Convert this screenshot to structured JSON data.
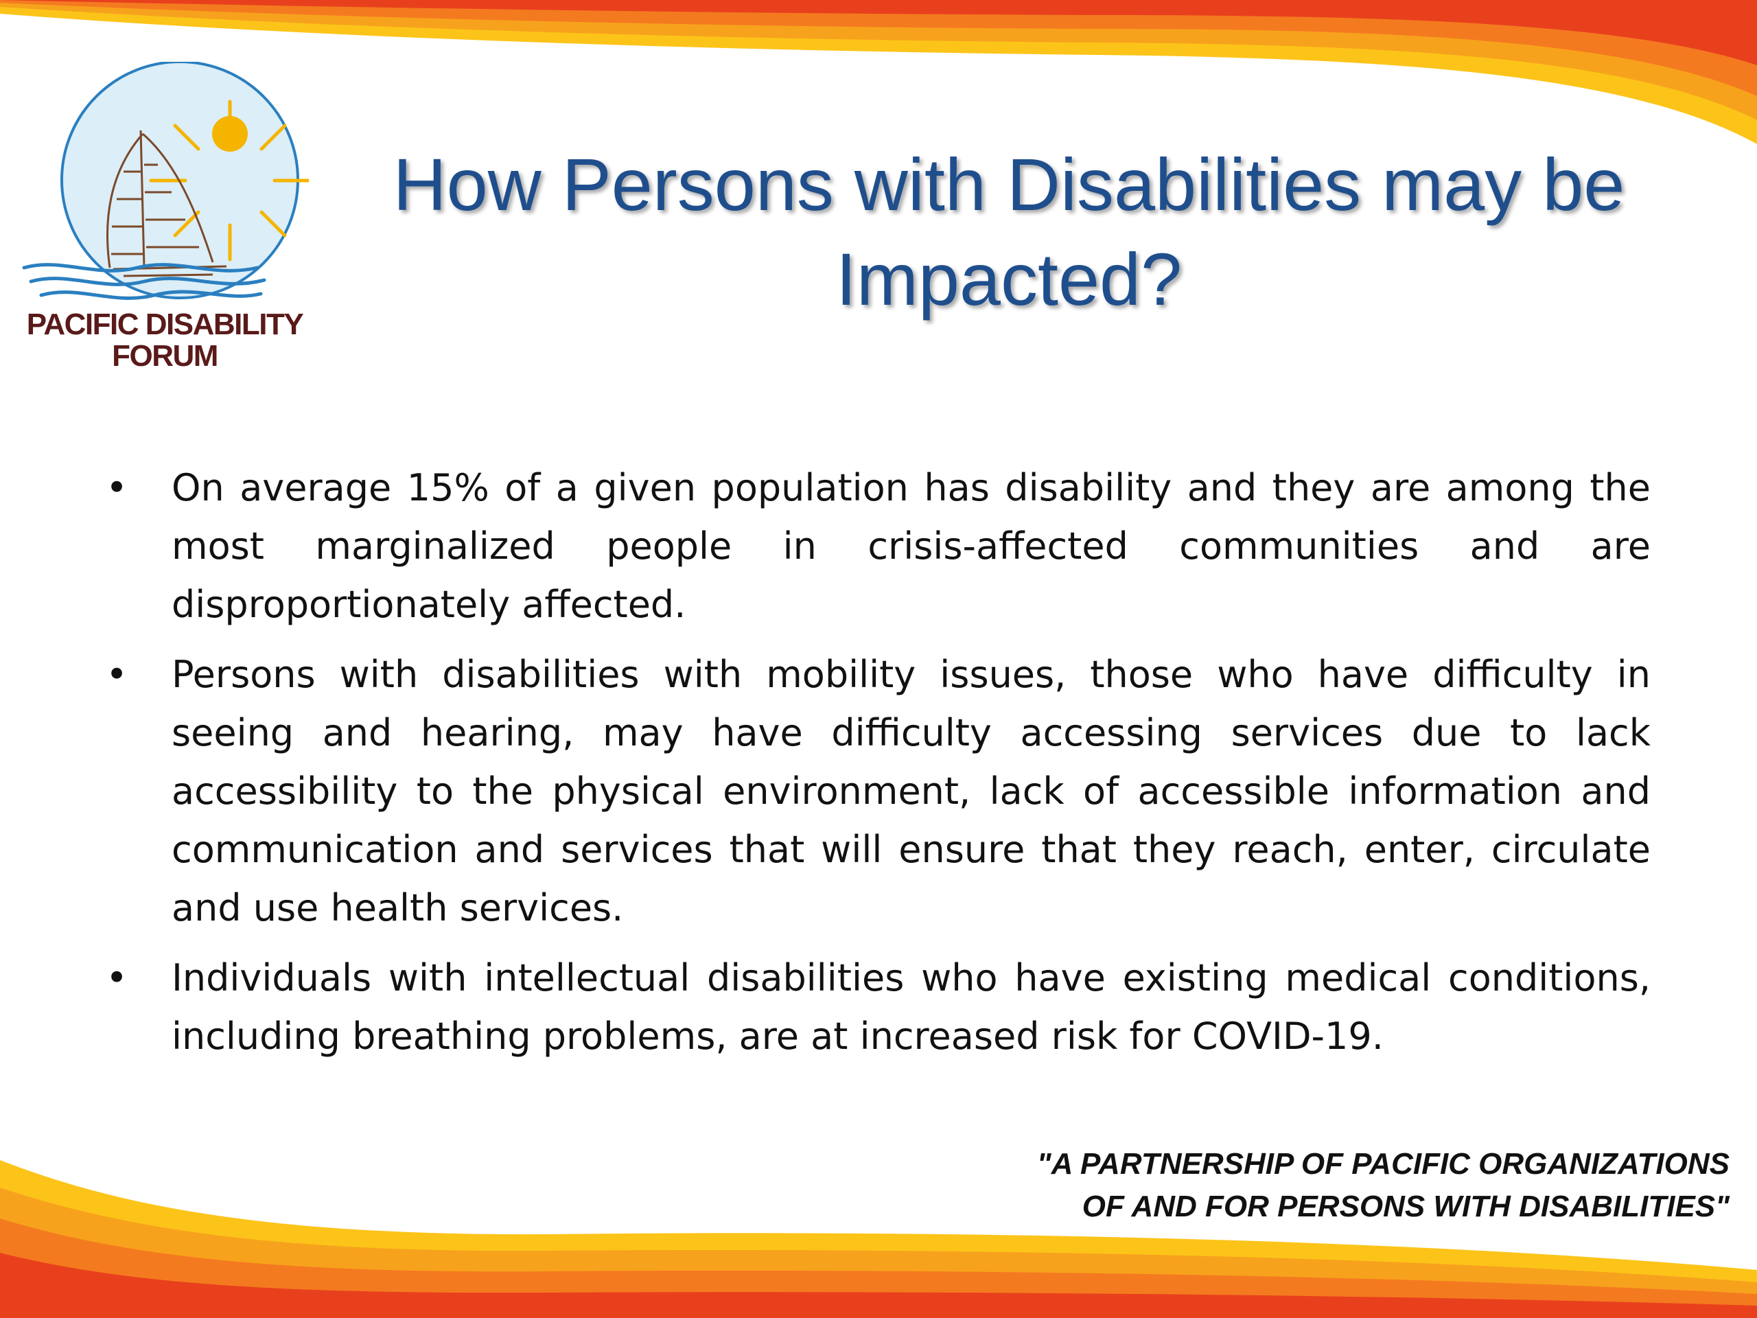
{
  "slide": {
    "title_line1": "How Persons with Disabilities may be",
    "title_line2": "Impacted?",
    "logo": {
      "line1": "PACIFIC DISABILITY",
      "line2": "FORUM",
      "icon": "sailboat-sun-icon"
    },
    "bullets": [
      {
        "marker": "•",
        "text": "On average 15% of a given population has disability and they are among the most marginalized people in crisis-affected communities and are disproportionately affected."
      },
      {
        "marker": "•",
        "text": "Persons with disabilities with mobility issues, those who have difficulty in seeing and hearing, may have difficulty accessing services due to lack accessibility to the physical environment, lack of accessible information and communication and services that will ensure that they reach, enter, circulate and use health services."
      },
      {
        "marker": "•",
        "text": "Individuals with intellectual disabilities who have existing medical conditions, including breathing problems, are at increased risk for COVID-19."
      }
    ],
    "tagline_line1": "\"A PARTNERSHIP OF PACIFIC ORGANIZATIONS",
    "tagline_line2": "OF AND FOR PERSONS WITH DISABILITIES\"",
    "colors": {
      "title": "#1f4e8c",
      "swoosh_red": "#e8401c",
      "swoosh_orange": "#f47a20",
      "swoosh_yellow": "#fcc419"
    }
  }
}
